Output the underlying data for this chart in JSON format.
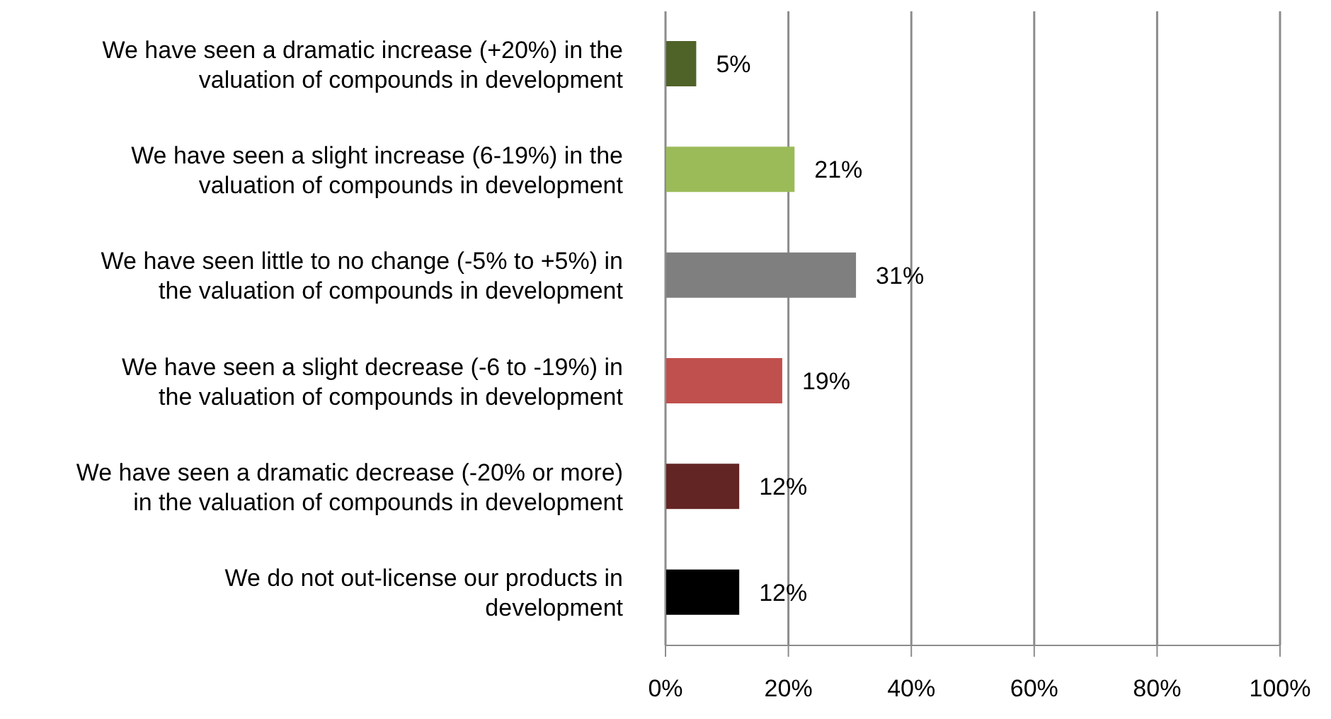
{
  "chart_data": {
    "type": "bar",
    "orientation": "horizontal",
    "categories": [
      "We have seen a dramatic increase (+20%) in the valuation of compounds in development",
      "We have seen a slight increase (6-19%) in the valuation of compounds in development",
      "We have seen little to no change (-5% to +5%) in the valuation of compounds in development",
      "We have seen a slight decrease (-6 to -19%) in the valuation of compounds in development",
      "We have seen a dramatic decrease (-20% or more) in the valuation of compounds in development",
      "We do not out-license our products in development"
    ],
    "values": [
      5,
      21,
      31,
      19,
      12,
      12
    ],
    "colors": [
      "#4f6228",
      "#9bbb59",
      "#7f7f7f",
      "#c0504d",
      "#632523",
      "#000000"
    ],
    "value_labels": [
      "5%",
      "21%",
      "31%",
      "19%",
      "12%",
      "12%"
    ],
    "xlim": [
      0,
      100
    ],
    "xticks": [
      {
        "value": 0,
        "label": "0%"
      },
      {
        "value": 20,
        "label": "20%"
      },
      {
        "value": 40,
        "label": "40%"
      },
      {
        "value": 60,
        "label": "60%"
      },
      {
        "value": 80,
        "label": "80%"
      },
      {
        "value": 100,
        "label": "100%"
      }
    ],
    "grid": "x"
  }
}
